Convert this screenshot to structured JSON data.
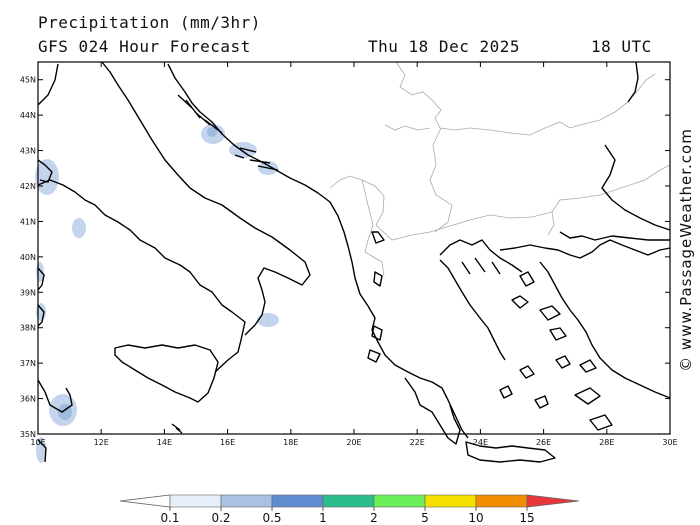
{
  "header": {
    "title": "Precipitation (mm/3hr)",
    "subtitle": "GFS 024 Hour Forecast",
    "valid_date": "Thu 18 Dec 2025",
    "valid_time": "18 UTC"
  },
  "credit": "© www.PassageWeather.com",
  "map": {
    "projection": "equirectangular",
    "lon_range": [
      10,
      30
    ],
    "lat_range": [
      35,
      45.5
    ],
    "lon_ticks": [
      "10E",
      "12E",
      "14E",
      "16E",
      "18E",
      "20E",
      "22E",
      "24E",
      "26E",
      "28E",
      "30E"
    ],
    "lat_ticks": [
      "35N",
      "36N",
      "37N",
      "38N",
      "39N",
      "40N",
      "41N",
      "42N",
      "43N",
      "44N",
      "45N"
    ],
    "coastline_color": "#000000",
    "border_color": "#aaaaaa"
  },
  "legend": {
    "labels": [
      "0.1",
      "0.2",
      "0.5",
      "1",
      "2",
      "5",
      "10",
      "15"
    ],
    "colors": [
      "#ffffff",
      "#e6eefa",
      "#a9c1e3",
      "#5f8bd1",
      "#2dbd8c",
      "#6cf05a",
      "#f5e100",
      "#f28c00",
      "#e8363c"
    ]
  }
}
